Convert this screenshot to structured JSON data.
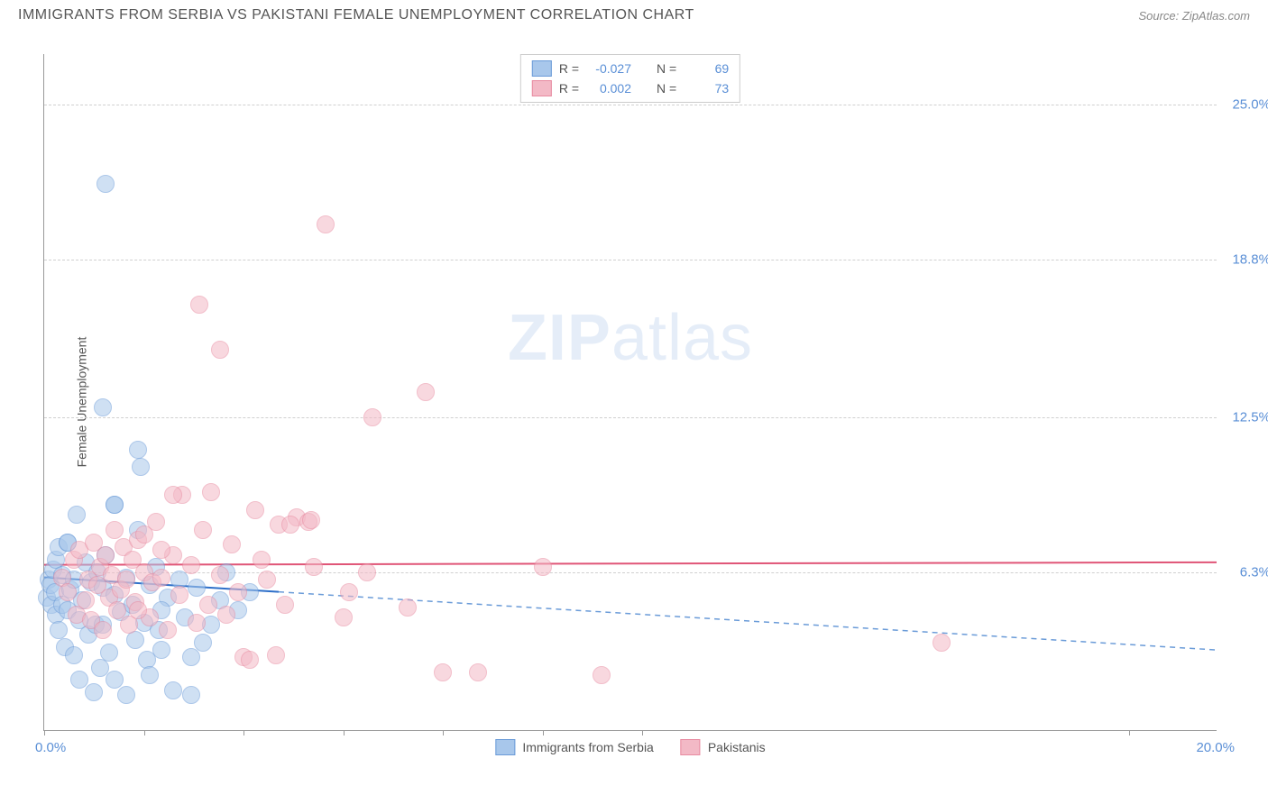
{
  "header": {
    "title": "IMMIGRANTS FROM SERBIA VS PAKISTANI FEMALE UNEMPLOYMENT CORRELATION CHART",
    "source": "Source: ZipAtlas.com"
  },
  "watermark": {
    "zip": "ZIP",
    "atlas": "atlas"
  },
  "chart": {
    "type": "scatter",
    "ylabel": "Female Unemployment",
    "xlim": [
      0,
      20
    ],
    "ylim": [
      0,
      27
    ],
    "x_tick_positions": [
      0,
      1.7,
      3.4,
      5.1,
      6.8,
      8.5,
      10.2,
      18.5
    ],
    "x_min_label": "0.0%",
    "x_max_label": "20.0%",
    "y_ticks": [
      {
        "v": 6.3,
        "label": "6.3%"
      },
      {
        "v": 12.5,
        "label": "12.5%"
      },
      {
        "v": 18.8,
        "label": "18.8%"
      },
      {
        "v": 25.0,
        "label": "25.0%"
      }
    ],
    "grid_color": "#d0d0d0",
    "background_color": "#ffffff",
    "marker_radius": 9,
    "series": [
      {
        "id": "serbia",
        "label": "Immigrants from Serbia",
        "fill": "#a8c7eb",
        "stroke": "#6a9bd8",
        "fill_opacity": 0.55,
        "R_label": "R =",
        "R": "-0.027",
        "N_label": "N =",
        "N": "69",
        "trend": {
          "y_start": 6.1,
          "y_end": 3.2,
          "x_solid_end": 4.0,
          "solid_color": "#2d6fc9",
          "dash_color": "#6a9bd8",
          "width": 2
        },
        "points": [
          [
            0.05,
            5.3
          ],
          [
            0.08,
            6.0
          ],
          [
            0.1,
            5.8
          ],
          [
            0.12,
            5.0
          ],
          [
            0.15,
            6.4
          ],
          [
            0.18,
            5.5
          ],
          [
            0.2,
            4.6
          ],
          [
            0.2,
            6.8
          ],
          [
            0.25,
            4.0
          ],
          [
            0.25,
            7.3
          ],
          [
            0.3,
            5.0
          ],
          [
            0.3,
            6.2
          ],
          [
            0.35,
            3.3
          ],
          [
            0.4,
            7.5
          ],
          [
            0.4,
            4.8
          ],
          [
            0.45,
            5.6
          ],
          [
            0.5,
            3.0
          ],
          [
            0.5,
            6.0
          ],
          [
            0.55,
            8.6
          ],
          [
            0.6,
            4.4
          ],
          [
            0.6,
            2.0
          ],
          [
            0.65,
            5.2
          ],
          [
            0.7,
            6.7
          ],
          [
            0.75,
            3.8
          ],
          [
            0.8,
            5.9
          ],
          [
            0.85,
            1.5
          ],
          [
            0.88,
            4.2
          ],
          [
            0.9,
            6.3
          ],
          [
            0.95,
            2.5
          ],
          [
            1.0,
            5.7
          ],
          [
            1.0,
            4.2
          ],
          [
            1.05,
            7.0
          ],
          [
            1.1,
            3.1
          ],
          [
            1.2,
            5.4
          ],
          [
            1.2,
            2.0
          ],
          [
            1.2,
            9.0
          ],
          [
            1.3,
            4.7
          ],
          [
            1.4,
            6.1
          ],
          [
            1.4,
            1.4
          ],
          [
            1.5,
            5.0
          ],
          [
            1.55,
            3.6
          ],
          [
            1.6,
            8.0
          ],
          [
            1.7,
            4.3
          ],
          [
            1.75,
            2.8
          ],
          [
            1.8,
            5.8
          ],
          [
            1.9,
            6.5
          ],
          [
            1.95,
            4.0
          ],
          [
            2.0,
            3.2
          ],
          [
            2.1,
            5.3
          ],
          [
            2.2,
            1.6
          ],
          [
            2.3,
            6.0
          ],
          [
            2.4,
            4.5
          ],
          [
            2.5,
            1.4
          ],
          [
            2.6,
            5.7
          ],
          [
            2.7,
            3.5
          ],
          [
            2.85,
            4.2
          ],
          [
            3.0,
            5.2
          ],
          [
            3.1,
            6.3
          ],
          [
            3.3,
            4.8
          ],
          [
            3.5,
            5.5
          ],
          [
            1.05,
            21.8
          ],
          [
            1.0,
            12.9
          ],
          [
            1.6,
            11.2
          ],
          [
            1.65,
            10.5
          ],
          [
            1.2,
            9.0
          ],
          [
            0.4,
            7.5
          ],
          [
            2.5,
            2.9
          ],
          [
            1.8,
            2.2
          ],
          [
            2.0,
            4.8
          ]
        ]
      },
      {
        "id": "pakistani",
        "label": "Pakistanis",
        "fill": "#f3b9c6",
        "stroke": "#e88aa0",
        "fill_opacity": 0.55,
        "R_label": "R =",
        "R": "0.002",
        "N_label": "N =",
        "N": "73",
        "trend": {
          "y_start": 6.6,
          "y_end": 6.7,
          "x_solid_end": 20.0,
          "solid_color": "#e05577",
          "dash_color": "#e88aa0",
          "width": 2
        },
        "points": [
          [
            0.3,
            6.1
          ],
          [
            0.4,
            5.5
          ],
          [
            0.5,
            6.8
          ],
          [
            0.55,
            4.6
          ],
          [
            0.6,
            7.2
          ],
          [
            0.7,
            5.2
          ],
          [
            0.75,
            6.0
          ],
          [
            0.8,
            4.4
          ],
          [
            0.85,
            7.5
          ],
          [
            0.9,
            5.8
          ],
          [
            0.95,
            6.5
          ],
          [
            1.0,
            4.0
          ],
          [
            1.05,
            7.0
          ],
          [
            1.1,
            5.3
          ],
          [
            1.15,
            6.2
          ],
          [
            1.2,
            8.0
          ],
          [
            1.25,
            4.8
          ],
          [
            1.3,
            5.6
          ],
          [
            1.35,
            7.3
          ],
          [
            1.4,
            6.0
          ],
          [
            1.45,
            4.2
          ],
          [
            1.5,
            6.8
          ],
          [
            1.55,
            5.1
          ],
          [
            1.6,
            7.6
          ],
          [
            1.7,
            6.3
          ],
          [
            1.8,
            4.5
          ],
          [
            1.85,
            5.9
          ],
          [
            1.9,
            8.3
          ],
          [
            2.0,
            6.1
          ],
          [
            2.1,
            4.0
          ],
          [
            2.2,
            7.0
          ],
          [
            2.3,
            5.4
          ],
          [
            2.35,
            9.4
          ],
          [
            2.5,
            6.6
          ],
          [
            2.6,
            4.3
          ],
          [
            2.7,
            8.0
          ],
          [
            2.8,
            5.0
          ],
          [
            2.85,
            9.5
          ],
          [
            3.0,
            6.2
          ],
          [
            3.1,
            4.6
          ],
          [
            3.2,
            7.4
          ],
          [
            3.3,
            5.5
          ],
          [
            3.4,
            2.9
          ],
          [
            3.5,
            2.8
          ],
          [
            3.6,
            8.8
          ],
          [
            3.8,
            6.0
          ],
          [
            3.95,
            3.0
          ],
          [
            4.0,
            8.2
          ],
          [
            4.1,
            5.0
          ],
          [
            4.3,
            8.5
          ],
          [
            4.5,
            8.3
          ],
          [
            4.6,
            6.5
          ],
          [
            4.55,
            8.4
          ],
          [
            5.1,
            4.5
          ],
          [
            5.2,
            5.5
          ],
          [
            5.5,
            6.3
          ],
          [
            5.6,
            12.5
          ],
          [
            6.2,
            4.9
          ],
          [
            6.5,
            13.5
          ],
          [
            6.8,
            2.3
          ],
          [
            7.4,
            2.3
          ],
          [
            8.5,
            6.5
          ],
          [
            9.5,
            2.2
          ],
          [
            15.3,
            3.5
          ],
          [
            2.65,
            17.0
          ],
          [
            3.0,
            15.2
          ],
          [
            2.2,
            9.4
          ],
          [
            4.8,
            20.2
          ],
          [
            1.7,
            7.8
          ],
          [
            2.0,
            7.2
          ],
          [
            3.7,
            6.8
          ],
          [
            4.2,
            8.2
          ],
          [
            1.6,
            4.8
          ]
        ]
      }
    ]
  },
  "legend_bottom": {
    "items": [
      {
        "label": "Immigrants from Serbia",
        "fill": "#a8c7eb",
        "stroke": "#6a9bd8"
      },
      {
        "label": "Pakistanis",
        "fill": "#f3b9c6",
        "stroke": "#e88aa0"
      }
    ]
  }
}
